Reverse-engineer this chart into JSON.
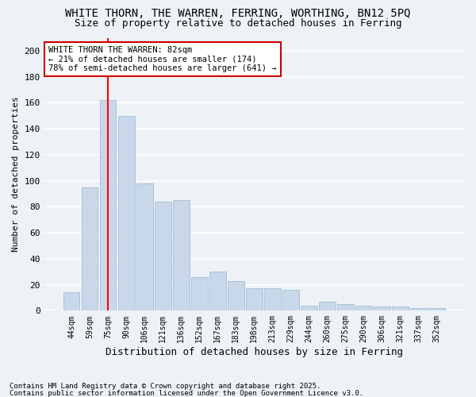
{
  "title1": "WHITE THORN, THE WARREN, FERRING, WORTHING, BN12 5PQ",
  "title2": "Size of property relative to detached houses in Ferring",
  "xlabel": "Distribution of detached houses by size in Ferring",
  "ylabel": "Number of detached properties",
  "categories": [
    "44sqm",
    "59sqm",
    "75sqm",
    "90sqm",
    "106sqm",
    "121sqm",
    "136sqm",
    "152sqm",
    "167sqm",
    "183sqm",
    "198sqm",
    "213sqm",
    "229sqm",
    "244sqm",
    "260sqm",
    "275sqm",
    "290sqm",
    "306sqm",
    "321sqm",
    "337sqm",
    "352sqm"
  ],
  "values": [
    14,
    95,
    162,
    150,
    98,
    84,
    85,
    26,
    30,
    23,
    17,
    17,
    16,
    4,
    7,
    5,
    4,
    3,
    3,
    2,
    2
  ],
  "bar_color": "#c8d8ea",
  "bar_edge_color": "#9ab4cc",
  "redline_index": 2,
  "annotation_text": "WHITE THORN THE WARREN: 82sqm\n← 21% of detached houses are smaller (174)\n78% of semi-detached houses are larger (641) →",
  "footer1": "Contains HM Land Registry data © Crown copyright and database right 2025.",
  "footer2": "Contains public sector information licensed under the Open Government Licence v3.0.",
  "ylim": [
    0,
    210
  ],
  "yticks": [
    0,
    20,
    40,
    60,
    80,
    100,
    120,
    140,
    160,
    180,
    200
  ],
  "bg_color": "#eef2f7",
  "grid_color": "#ffffff",
  "annotation_box_color": "#ffffff",
  "annotation_box_edge": "#cc0000"
}
